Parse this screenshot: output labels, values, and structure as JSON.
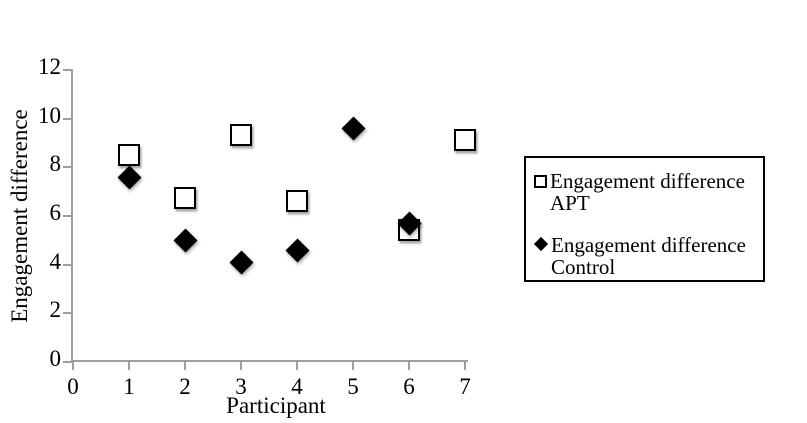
{
  "chart_data": {
    "type": "scatter",
    "title": "",
    "xlabel": "Participant",
    "ylabel": "Engagement difference",
    "xlim": [
      0,
      7
    ],
    "ylim": [
      0,
      12
    ],
    "x_ticks": [
      0,
      1,
      2,
      3,
      4,
      5,
      6,
      7
    ],
    "y_ticks": [
      0,
      2,
      4,
      6,
      8,
      10,
      12
    ],
    "grid": false,
    "legend_position": "right",
    "axis_color": "#9e9e9e",
    "marker_color": "#000000",
    "background_color": "#ffffff",
    "series": [
      {
        "id": "apt",
        "name": "Engagement difference APT",
        "name_lines": [
          "Engagement difference",
          "APT"
        ],
        "marker": "open-square",
        "points": [
          {
            "x": 1,
            "y": 8.5
          },
          {
            "x": 2,
            "y": 6.7
          },
          {
            "x": 3,
            "y": 9.3
          },
          {
            "x": 4,
            "y": 6.6
          },
          {
            "x": 6,
            "y": 5.4
          },
          {
            "x": 7,
            "y": 9.1
          }
        ]
      },
      {
        "id": "control",
        "name": "Engagement difference Control",
        "name_lines": [
          "Engagement difference",
          "Control"
        ],
        "marker": "filled-diamond",
        "points": [
          {
            "x": 1,
            "y": 7.6
          },
          {
            "x": 2,
            "y": 5.0
          },
          {
            "x": 3,
            "y": 4.1
          },
          {
            "x": 4,
            "y": 4.6
          },
          {
            "x": 5,
            "y": 9.6
          },
          {
            "x": 6,
            "y": 5.7
          }
        ]
      }
    ]
  }
}
